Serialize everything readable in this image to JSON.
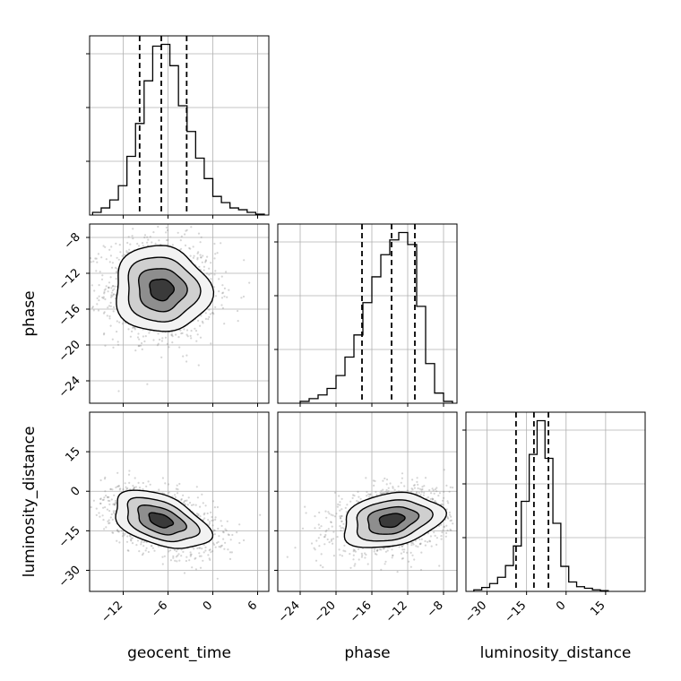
{
  "chart_data": {
    "type": "corner",
    "parameters": [
      {
        "name": "geocent_time",
        "range": [
          -16.5,
          7.5
        ],
        "ticks": [
          -12,
          -6,
          0,
          6
        ],
        "tick_labels": [
          "−12",
          "−6",
          "0",
          "6"
        ],
        "quantiles": [
          -9.8,
          -6.9,
          -3.5
        ],
        "histogram": {
          "edges": [
            -16.1,
            -14.95,
            -13.8,
            -12.65,
            -11.5,
            -10.35,
            -9.2,
            -8.05,
            -6.9,
            -5.75,
            -4.6,
            -3.45,
            -2.3,
            -1.15,
            0.0,
            1.15,
            2.3,
            3.45,
            4.6,
            5.75,
            6.9
          ],
          "counts": [
            3,
            8,
            17,
            33,
            66,
            103,
            151,
            190,
            192,
            168,
            123,
            94,
            64,
            41,
            21,
            14,
            8,
            6,
            3,
            1
          ]
        }
      },
      {
        "name": "phase",
        "range": [
          -26.5,
          -6.5
        ],
        "ticks": [
          -24,
          -20,
          -16,
          -12,
          -8
        ],
        "tick_labels": [
          "−24",
          "−20",
          "−16",
          "−12",
          "−8"
        ],
        "quantiles": [
          -17.1,
          -13.8,
          -11.2
        ],
        "histogram": {
          "edges": [
            -24.0,
            -23.0,
            -22.0,
            -21.0,
            -20.0,
            -19.0,
            -18.0,
            -17.0,
            -16.0,
            -15.0,
            -14.0,
            -13.0,
            -12.0,
            -11.0,
            -10.0,
            -9.0,
            -8.0,
            -7.0
          ],
          "counts": [
            2,
            5,
            9,
            16,
            30,
            50,
            74,
            109,
            137,
            161,
            177,
            185,
            172,
            105,
            43,
            11,
            2
          ]
        }
      },
      {
        "name": "luminosity_distance",
        "range": [
          -38,
          30
        ],
        "ticks": [
          -30,
          -15,
          0,
          15
        ],
        "tick_labels": [
          "−30",
          "−15",
          "0",
          "15"
        ],
        "quantiles": [
          -19.0,
          -12.2,
          -6.7
        ],
        "histogram": {
          "edges": [
            -35.0,
            -32.0,
            -29.0,
            -26.0,
            -23.0,
            -20.0,
            -17.0,
            -14.0,
            -11.0,
            -8.0,
            -5.0,
            -2.0,
            1.0,
            4.0,
            7.0,
            10.0,
            13.0,
            16.0
          ],
          "counts": [
            2,
            5,
            10,
            18,
            33,
            58,
            115,
            175,
            218,
            170,
            87,
            32,
            12,
            6,
            4,
            2,
            1
          ]
        }
      }
    ],
    "pairs": [
      {
        "x": "geocent_time",
        "y": "phase",
        "mean": [
          -6.9,
          -13.8
        ],
        "sd": [
          3.2,
          2.4
        ],
        "rho": -0.05
      },
      {
        "x": "geocent_time",
        "y": "luminosity_distance",
        "mean": [
          -7.0,
          -11.0
        ],
        "sd": [
          3.2,
          5.5
        ],
        "rho": -0.45
      },
      {
        "x": "phase",
        "y": "luminosity_distance",
        "mean": [
          -13.8,
          -11.0
        ],
        "sd": [
          2.8,
          5.2
        ],
        "rho": 0.25
      }
    ],
    "contour_levels": [
      0.5,
      1.0,
      1.5,
      2.0
    ],
    "grid": true,
    "samples_color": "#888888",
    "line_color": "#000000"
  }
}
